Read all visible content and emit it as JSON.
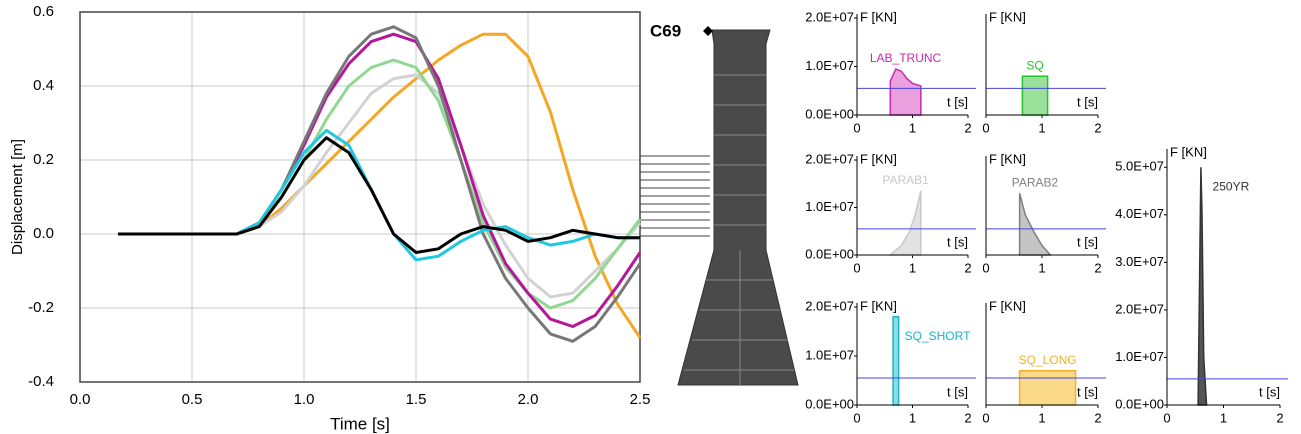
{
  "diagram": {
    "label": "C69"
  },
  "chart_data": [
    {
      "type": "line",
      "xlabel": "Time [s]",
      "ylabel": "Displacement [m]",
      "x": [
        0.17,
        0.5,
        0.7,
        0.8,
        0.9,
        1.0,
        1.1,
        1.2,
        1.3,
        1.4,
        1.5,
        1.6,
        1.7,
        1.8,
        1.9,
        2.0,
        2.1,
        2.2,
        2.3,
        2.4,
        2.5
      ],
      "xlim": [
        0,
        2.5
      ],
      "ylim": [
        -0.4,
        0.6
      ],
      "grid": true,
      "xticks": [
        {
          "value": 0,
          "label": "0.0"
        },
        0.5,
        {
          "value": 1,
          "label": "1.0"
        },
        1.5,
        {
          "value": 2,
          "label": "2.0"
        },
        2.5
      ],
      "yticks": [
        -0.4,
        -0.2,
        {
          "value": 0,
          "label": "0.0"
        },
        0.2,
        0.4,
        0.6
      ],
      "series": [
        {
          "color": "#f5a623",
          "values": [
            0,
            0,
            0,
            0.02,
            0.07,
            0.13,
            0.19,
            0.25,
            0.31,
            0.37,
            0.42,
            0.47,
            0.51,
            0.54,
            0.54,
            0.48,
            0.33,
            0.12,
            -0.06,
            -0.19,
            -0.28
          ]
        },
        {
          "color": "#d2d2d2",
          "values": [
            0,
            0,
            0,
            0.02,
            0.06,
            0.13,
            0.22,
            0.3,
            0.38,
            0.42,
            0.43,
            0.38,
            0.24,
            0.08,
            -0.03,
            -0.12,
            -0.17,
            -0.16,
            -0.1,
            -0.04,
            0.03
          ]
        },
        {
          "color": "#90d890",
          "values": [
            0,
            0,
            0,
            0.03,
            0.1,
            0.2,
            0.31,
            0.4,
            0.45,
            0.47,
            0.45,
            0.36,
            0.2,
            0.03,
            -0.09,
            -0.16,
            -0.2,
            -0.18,
            -0.12,
            -0.04,
            0.04
          ]
        },
        {
          "color": "#b5169b",
          "values": [
            0,
            0,
            0,
            0.03,
            0.12,
            0.24,
            0.37,
            0.46,
            0.52,
            0.54,
            0.52,
            0.42,
            0.24,
            0.05,
            -0.08,
            -0.16,
            -0.23,
            -0.25,
            -0.22,
            -0.14,
            -0.05
          ]
        },
        {
          "color": "#777777",
          "values": [
            0,
            0,
            0,
            0.03,
            0.12,
            0.25,
            0.38,
            0.48,
            0.54,
            0.56,
            0.53,
            0.4,
            0.2,
            0,
            -0.12,
            -0.2,
            -0.27,
            -0.29,
            -0.25,
            -0.17,
            -0.08
          ]
        },
        {
          "color": "#1ec8e0",
          "values": [
            0,
            0,
            0,
            0.03,
            0.12,
            0.22,
            0.28,
            0.24,
            0.12,
            0,
            -0.07,
            -0.06,
            -0.02,
            0.01,
            0.02,
            -0.01,
            -0.03,
            -0.02,
            0,
            -0.01,
            -0.01
          ]
        },
        {
          "color": "#000000",
          "values": [
            0,
            0,
            0,
            0.02,
            0.1,
            0.2,
            0.26,
            0.22,
            0.12,
            0,
            -0.05,
            -0.04,
            0,
            0.02,
            0.01,
            -0.02,
            -0.01,
            0.01,
            0,
            -0.01,
            -0.01
          ]
        }
      ]
    },
    {
      "type": "area",
      "title": "F [KN]",
      "xlabel": "t [s]",
      "label": "LAB_TRUNC",
      "color": "#c42bb0",
      "fill": "#e9a0df",
      "x": [
        0.6,
        0.6,
        0.7,
        0.8,
        0.9,
        1.0,
        1.15,
        1.15
      ],
      "values": [
        0,
        7000000,
        9500000,
        9000000,
        7500000,
        6500000,
        6000000,
        0
      ],
      "baseline": 5500000,
      "xlim": [
        0,
        2
      ],
      "ylim": [
        0,
        20000000
      ],
      "xticks": [
        0,
        1,
        2
      ],
      "yticks": [
        {
          "value": 0,
          "label": "0.0E+00"
        },
        {
          "value": 10000000,
          "label": "1.0E+07"
        },
        {
          "value": 20000000,
          "label": "2.0E+07"
        }
      ]
    },
    {
      "type": "area",
      "title": "F [KN]",
      "xlabel": "t [s]",
      "label": "SQ",
      "color": "#22c32a",
      "fill": "#9be09b",
      "x": [
        0.65,
        0.65,
        1.1,
        1.1
      ],
      "values": [
        0,
        8000000,
        8000000,
        0
      ],
      "baseline": 5500000,
      "xlim": [
        0,
        2
      ],
      "ylim": [
        0,
        20000000
      ],
      "xticks": [
        0,
        1,
        2
      ],
      "yticks": []
    },
    {
      "type": "area",
      "title": "F [KN]",
      "xlabel": "t [s]",
      "label": "PARAB1",
      "color": "#c8c8c8",
      "fill": "#e2e2e2",
      "x": [
        0.6,
        0.8,
        0.95,
        1.05,
        1.15,
        1.15
      ],
      "values": [
        0,
        2000000,
        5000000,
        8500000,
        13500000,
        0
      ],
      "baseline": 5500000,
      "xlim": [
        0,
        2
      ],
      "ylim": [
        0,
        20000000
      ],
      "xticks": [
        0,
        1,
        2
      ],
      "yticks": [
        {
          "value": 0,
          "label": "0.0E+00"
        },
        {
          "value": 10000000,
          "label": "1.0E+07"
        },
        {
          "value": 20000000,
          "label": "2.0E+07"
        }
      ]
    },
    {
      "type": "area",
      "title": "F [KN]",
      "xlabel": "t [s]",
      "label": "PARAB2",
      "color": "#808080",
      "fill": "#c4c4c4",
      "x": [
        0.6,
        0.6,
        0.7,
        0.85,
        1.0,
        1.15
      ],
      "values": [
        0,
        13000000,
        8500000,
        5000000,
        2000000,
        0
      ],
      "baseline": 5500000,
      "xlim": [
        0,
        2
      ],
      "ylim": [
        0,
        20000000
      ],
      "xticks": [
        0,
        1,
        2
      ],
      "yticks": []
    },
    {
      "type": "area",
      "title": "F [KN]",
      "xlabel": "t [s]",
      "label": "SQ_SHORT",
      "color": "#1ab6cc",
      "fill": "#8fdbe6",
      "x": [
        0.65,
        0.65,
        0.75,
        0.75
      ],
      "values": [
        0,
        18000000,
        18000000,
        0
      ],
      "baseline": 5500000,
      "xlim": [
        0,
        2
      ],
      "ylim": [
        0,
        20000000
      ],
      "xticks": [
        0,
        1,
        2
      ],
      "yticks": [
        {
          "value": 0,
          "label": "0.0E+00"
        },
        {
          "value": 10000000,
          "label": "1.0E+07"
        },
        {
          "value": 20000000,
          "label": "2.0E+07"
        }
      ]
    },
    {
      "type": "area",
      "title": "F [KN]",
      "xlabel": "t [s]",
      "label": "SQ_LONG",
      "color": "#f5b026",
      "fill": "#fad98a",
      "x": [
        0.6,
        0.6,
        1.6,
        1.6
      ],
      "values": [
        0,
        7000000,
        7000000,
        0
      ],
      "baseline": 5500000,
      "xlim": [
        0,
        2
      ],
      "ylim": [
        0,
        20000000
      ],
      "xticks": [
        0,
        1,
        2
      ],
      "yticks": []
    },
    {
      "type": "area",
      "title": "F [KN]",
      "xlabel": "t [s]",
      "label": "250YR",
      "color": "#333333",
      "fill": "#555555",
      "x": [
        0.55,
        0.6,
        0.62,
        0.65,
        0.7
      ],
      "values": [
        0,
        50000000,
        40000000,
        10000000,
        0
      ],
      "baseline": 5500000,
      "xlim": [
        0,
        2
      ],
      "ylim": [
        0,
        53000000
      ],
      "xticks": [
        0,
        1,
        2
      ],
      "yticks": [
        {
          "value": 0,
          "label": "0.0E+00"
        },
        {
          "value": 10000000,
          "label": "1.0E+07"
        },
        {
          "value": 20000000,
          "label": "2.0E+07"
        },
        {
          "value": 30000000,
          "label": "3.0E+07"
        },
        {
          "value": 40000000,
          "label": "4.0E+07"
        },
        {
          "value": 50000000,
          "label": "5.0E+07"
        }
      ]
    }
  ]
}
